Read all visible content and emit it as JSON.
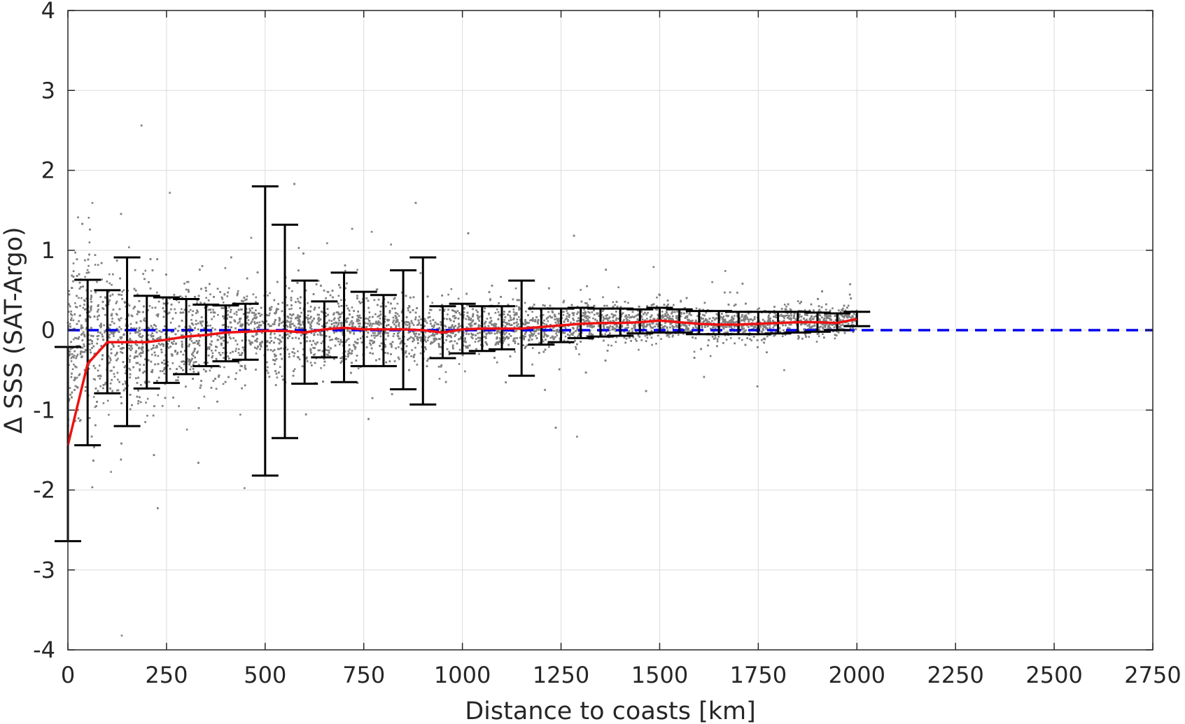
{
  "chart_data": {
    "type": "scatter",
    "xlabel": "Distance to coasts [km]",
    "ylabel": "Δ SSS (SAT-Argo)",
    "xlim": [
      0,
      2750
    ],
    "ylim": [
      -4,
      4
    ],
    "xticks": [
      0,
      250,
      500,
      750,
      1000,
      1250,
      1500,
      1750,
      2000,
      2250,
      2500,
      2750
    ],
    "yticks": [
      -4,
      -3,
      -2,
      -1,
      0,
      1,
      2,
      3,
      4
    ],
    "xtick_labels": [
      "0",
      "250",
      "500",
      "750",
      "1000",
      "1250",
      "1500",
      "1750",
      "2000",
      "2250",
      "2500",
      "2750"
    ],
    "ytick_labels": [
      "-4",
      "-3",
      "-2",
      "-1",
      "0",
      "1",
      "2",
      "3",
      "4"
    ],
    "grid": true,
    "reference_line": {
      "y": 0,
      "style": "dashed",
      "color": "#0000ee"
    },
    "scatter": {
      "color": "#808080",
      "x_range": [
        0,
        2000
      ],
      "description_points": "dense cloud of individual match-ups, spread narrowing with distance"
    },
    "series": [
      {
        "type": "line",
        "color": "#ee1111",
        "x": [
          0,
          50,
          100,
          150,
          200,
          250,
          300,
          350,
          400,
          450,
          500,
          550,
          600,
          650,
          700,
          750,
          800,
          850,
          900,
          950,
          1000,
          1050,
          1100,
          1150,
          1200,
          1250,
          1300,
          1350,
          1400,
          1450,
          1500,
          1550,
          1600,
          1650,
          1700,
          1750,
          1800,
          1850,
          1900,
          1950,
          2000
        ],
        "y": [
          -1.44,
          -0.42,
          -0.15,
          -0.15,
          -0.15,
          -0.12,
          -0.08,
          -0.06,
          -0.03,
          -0.02,
          -0.01,
          -0.01,
          -0.03,
          0.01,
          0.03,
          0.01,
          0.01,
          0.01,
          0.0,
          -0.03,
          0.01,
          0.02,
          0.02,
          0.02,
          0.04,
          0.06,
          0.08,
          0.09,
          0.09,
          0.1,
          0.12,
          0.1,
          0.08,
          0.07,
          0.07,
          0.08,
          0.09,
          0.1,
          0.1,
          0.09,
          0.14
        ]
      },
      {
        "type": "errorbar",
        "color": "#000000",
        "x": [
          0,
          50,
          100,
          150,
          200,
          250,
          300,
          350,
          400,
          450,
          500,
          550,
          600,
          650,
          700,
          750,
          800,
          850,
          900,
          950,
          1000,
          1050,
          1100,
          1150,
          1200,
          1250,
          1300,
          1350,
          1400,
          1450,
          1500,
          1550,
          1600,
          1650,
          1700,
          1750,
          1800,
          1850,
          1900,
          1950,
          2000
        ],
        "upper": [
          -0.21,
          0.63,
          0.5,
          0.91,
          0.43,
          0.41,
          0.39,
          0.32,
          0.31,
          0.33,
          1.8,
          1.32,
          0.62,
          0.36,
          0.72,
          0.48,
          0.44,
          0.75,
          0.91,
          0.3,
          0.33,
          0.3,
          0.3,
          0.62,
          0.27,
          0.27,
          0.28,
          0.27,
          0.27,
          0.26,
          0.28,
          0.26,
          0.24,
          0.24,
          0.23,
          0.23,
          0.23,
          0.23,
          0.22,
          0.21,
          0.23
        ],
        "lower": [
          -2.64,
          -1.44,
          -0.79,
          -1.2,
          -0.73,
          -0.66,
          -0.55,
          -0.45,
          -0.39,
          -0.37,
          -1.82,
          -1.35,
          -0.67,
          -0.34,
          -0.65,
          -0.45,
          -0.45,
          -0.74,
          -0.93,
          -0.35,
          -0.29,
          -0.26,
          -0.24,
          -0.57,
          -0.18,
          -0.15,
          -0.1,
          -0.08,
          -0.07,
          -0.04,
          -0.03,
          -0.03,
          -0.05,
          -0.05,
          -0.05,
          -0.05,
          -0.04,
          -0.03,
          -0.02,
          0.0,
          0.05
        ]
      }
    ]
  }
}
